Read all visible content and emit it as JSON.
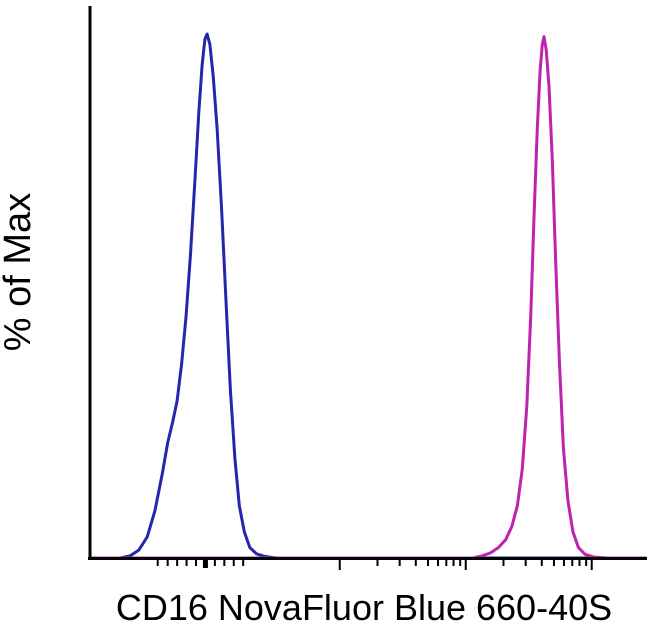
{
  "figure": {
    "background": "#ffffff",
    "axis_color": "#000000"
  },
  "chart_data": {
    "type": "line",
    "subtype": "flow-cytometry-histogram",
    "title": "",
    "xlabel": "CD16 NovaFluor Blue 660-40S",
    "ylabel": "% of Max",
    "x_axis": {
      "scale": "biexponential-log",
      "tick_labels_visible": false
    },
    "y_axis": {
      "range": [
        0,
        100
      ],
      "ticks_visible": false
    },
    "grid": false,
    "legend": "none",
    "axis_color": "#000000",
    "series": [
      {
        "name": "blue-curve",
        "color": "#2526ad",
        "stroke_width": 3,
        "points": [
          [
            0.0,
            0
          ],
          [
            0.055,
            0
          ],
          [
            0.072,
            0.4
          ],
          [
            0.088,
            1.5
          ],
          [
            0.103,
            4
          ],
          [
            0.117,
            9
          ],
          [
            0.13,
            16
          ],
          [
            0.14,
            22
          ],
          [
            0.149,
            26
          ],
          [
            0.157,
            30
          ],
          [
            0.165,
            37
          ],
          [
            0.173,
            46
          ],
          [
            0.181,
            58
          ],
          [
            0.189,
            72
          ],
          [
            0.196,
            85
          ],
          [
            0.202,
            94
          ],
          [
            0.207,
            99
          ],
          [
            0.211,
            100
          ],
          [
            0.216,
            98
          ],
          [
            0.222,
            92
          ],
          [
            0.229,
            82
          ],
          [
            0.237,
            67
          ],
          [
            0.245,
            49
          ],
          [
            0.253,
            32
          ],
          [
            0.261,
            19
          ],
          [
            0.269,
            10
          ],
          [
            0.278,
            5
          ],
          [
            0.288,
            2
          ],
          [
            0.3,
            0.8
          ],
          [
            0.315,
            0.3
          ],
          [
            0.335,
            0
          ],
          [
            1.0,
            0
          ]
        ]
      },
      {
        "name": "magenta-curve",
        "color": "#c122ad",
        "stroke_width": 3,
        "points": [
          [
            0.0,
            0
          ],
          [
            0.69,
            0
          ],
          [
            0.706,
            0.4
          ],
          [
            0.722,
            1
          ],
          [
            0.736,
            2
          ],
          [
            0.749,
            3.5
          ],
          [
            0.76,
            6
          ],
          [
            0.77,
            10
          ],
          [
            0.779,
            17
          ],
          [
            0.787,
            29
          ],
          [
            0.794,
            46
          ],
          [
            0.8,
            65
          ],
          [
            0.806,
            82
          ],
          [
            0.811,
            93
          ],
          [
            0.815,
            98
          ],
          [
            0.818,
            99.5
          ],
          [
            0.822,
            97
          ],
          [
            0.827,
            90
          ],
          [
            0.833,
            76
          ],
          [
            0.839,
            57
          ],
          [
            0.846,
            37
          ],
          [
            0.853,
            21
          ],
          [
            0.861,
            11
          ],
          [
            0.87,
            5
          ],
          [
            0.88,
            2
          ],
          [
            0.892,
            0.7
          ],
          [
            0.908,
            0.2
          ],
          [
            0.93,
            0
          ],
          [
            1.0,
            0
          ]
        ]
      }
    ],
    "ticks": [
      {
        "f": 0.122,
        "kind": "minor"
      },
      {
        "f": 0.14,
        "kind": "minor"
      },
      {
        "f": 0.157,
        "kind": "minor"
      },
      {
        "f": 0.174,
        "kind": "minor"
      },
      {
        "f": 0.191,
        "kind": "minor"
      },
      {
        "f": 0.208,
        "kind": "zero"
      },
      {
        "f": 0.225,
        "kind": "minor"
      },
      {
        "f": 0.242,
        "kind": "minor"
      },
      {
        "f": 0.259,
        "kind": "minor"
      },
      {
        "f": 0.276,
        "kind": "minor"
      },
      {
        "f": 0.45,
        "kind": "major"
      },
      {
        "f": 0.518,
        "kind": "minor"
      },
      {
        "f": 0.558,
        "kind": "minor"
      },
      {
        "f": 0.587,
        "kind": "minor"
      },
      {
        "f": 0.609,
        "kind": "minor"
      },
      {
        "f": 0.627,
        "kind": "minor"
      },
      {
        "f": 0.642,
        "kind": "minor"
      },
      {
        "f": 0.655,
        "kind": "minor"
      },
      {
        "f": 0.667,
        "kind": "minor"
      },
      {
        "f": 0.677,
        "kind": "major"
      },
      {
        "f": 0.745,
        "kind": "minor"
      },
      {
        "f": 0.785,
        "kind": "minor"
      },
      {
        "f": 0.814,
        "kind": "minor"
      },
      {
        "f": 0.836,
        "kind": "minor"
      },
      {
        "f": 0.854,
        "kind": "minor"
      },
      {
        "f": 0.869,
        "kind": "minor"
      },
      {
        "f": 0.882,
        "kind": "minor"
      },
      {
        "f": 0.894,
        "kind": "minor"
      },
      {
        "f": 0.904,
        "kind": "major"
      }
    ]
  }
}
